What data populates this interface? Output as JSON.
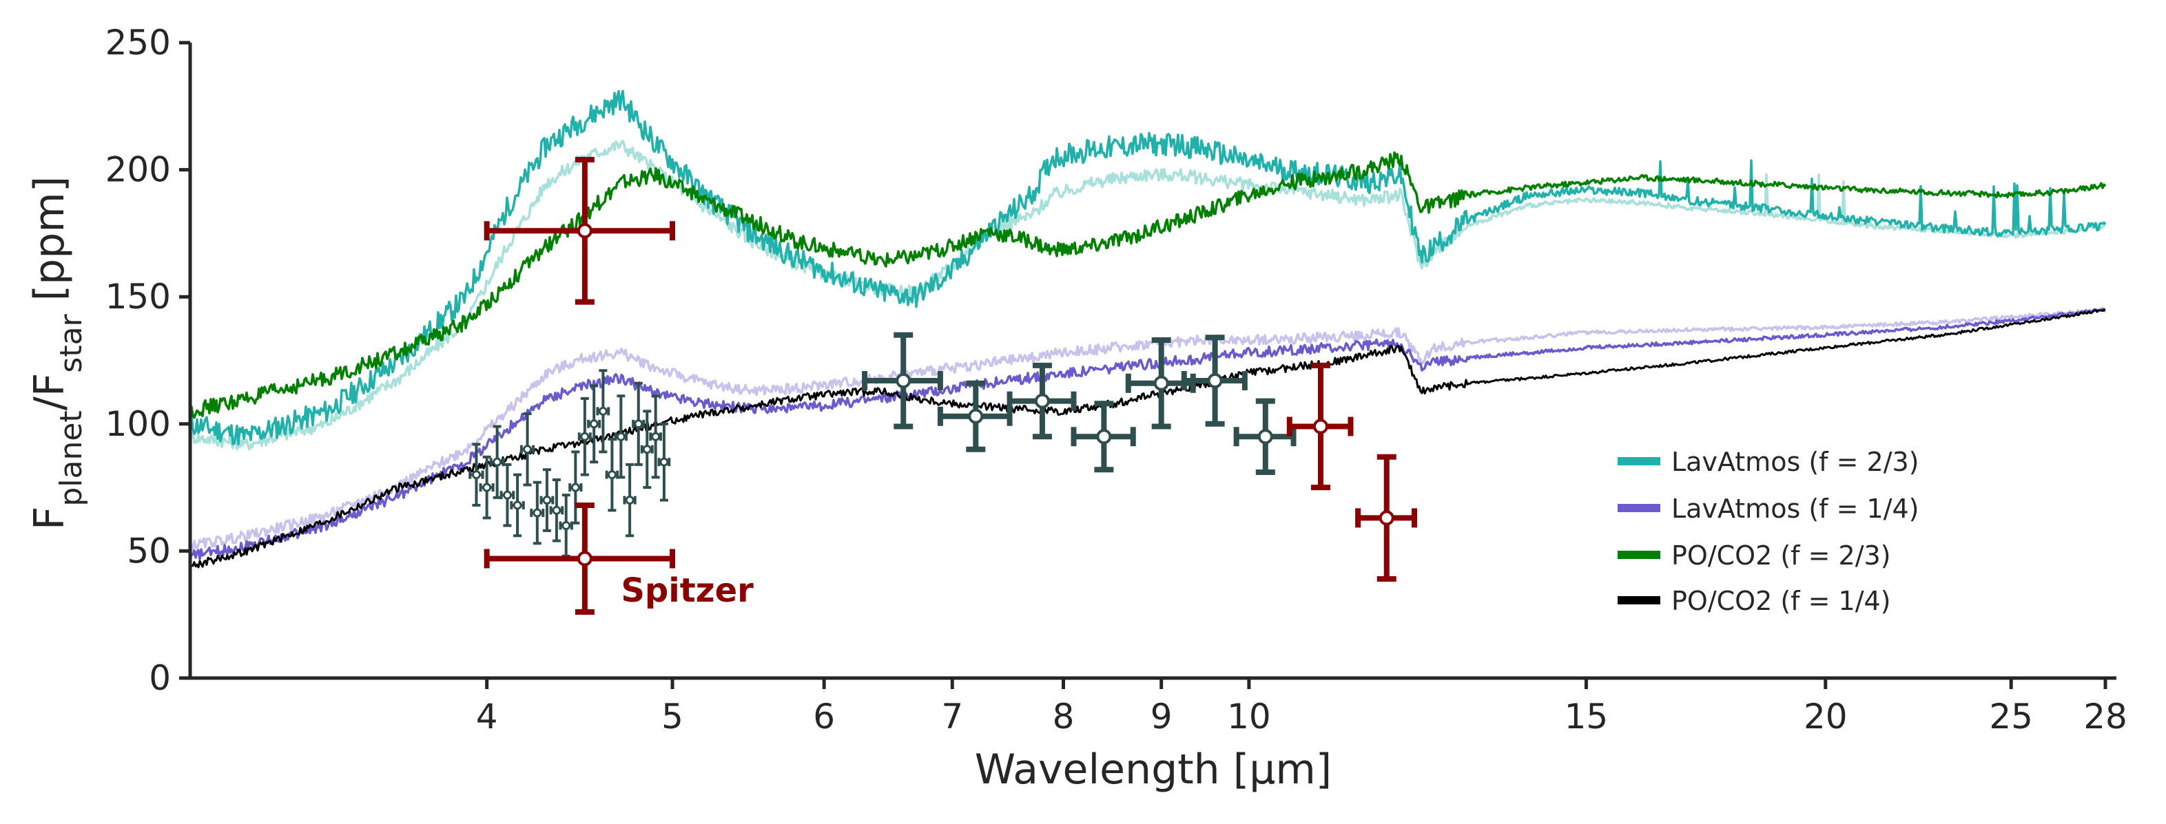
{
  "chart_data": {
    "type": "line",
    "xlabel": "Wavelength [μm]",
    "ylabel": {
      "base": "F",
      "sub1": "planet",
      "sep": "/F",
      "sub2": "star",
      "unit": " [ppm]"
    },
    "xscale": "log",
    "xlim": [
      2.8,
      28
    ],
    "ylim": [
      0,
      250
    ],
    "xticks": [
      4,
      5,
      6,
      7,
      8,
      9,
      10,
      15,
      20,
      25,
      28
    ],
    "yticks": [
      0,
      50,
      100,
      150,
      200,
      250
    ],
    "grid": false,
    "legend": {
      "placement": "center-right"
    },
    "colors": {
      "lav23": "#20b2aa",
      "lav23_light": "#a8e0dc",
      "lav14": "#6a5acd",
      "lav14_light": "#c8c2ec",
      "po23": "#008000",
      "po14": "#000000",
      "jwst": "#2f4f4f",
      "spitzer": "#8b0000"
    },
    "series": [
      {
        "name": "LavAtmos (f = 2/3)",
        "color": "#20b2aa",
        "legend": true,
        "x": [
          2.8,
          3.0,
          3.3,
          3.6,
          3.9,
          4.1,
          4.3,
          4.5,
          4.7,
          4.9,
          5.2,
          5.5,
          5.8,
          6.1,
          6.4,
          6.7,
          7.0,
          7.3,
          7.7,
          7.9,
          8.3,
          8.8,
          9.2,
          9.6,
          10.0,
          10.5,
          11.0,
          11.5,
          12.0,
          12.3,
          12.5,
          13.0,
          14.0,
          15.0,
          16.0,
          17.0,
          19.0,
          21.0,
          23.0,
          25.0,
          27.0,
          28.0
        ],
        "y": [
          100,
          95,
          105,
          125,
          150,
          185,
          210,
          220,
          228,
          210,
          190,
          175,
          165,
          158,
          152,
          150,
          160,
          175,
          190,
          205,
          208,
          210,
          210,
          207,
          203,
          200,
          198,
          195,
          198,
          165,
          170,
          180,
          190,
          192,
          191,
          188,
          184,
          180,
          177,
          175,
          177,
          178
        ],
        "noise": 9
      },
      {
        "name": "LavAtmos (f = 2/3) alt",
        "color": "#a8e0dc",
        "legend": false,
        "x": [
          2.8,
          3.0,
          3.3,
          3.6,
          3.9,
          4.1,
          4.3,
          4.5,
          4.7,
          4.9,
          5.2,
          5.5,
          5.8,
          6.1,
          6.4,
          6.7,
          7.0,
          7.3,
          7.7,
          7.9,
          8.3,
          8.8,
          9.2,
          9.6,
          10.0,
          10.5,
          11.0,
          11.5,
          12.0,
          12.3,
          12.5,
          13.0,
          14.0,
          15.0,
          16.0,
          17.0,
          19.0,
          21.0,
          23.0,
          25.0,
          27.0,
          28.0
        ],
        "y": [
          95,
          92,
          100,
          118,
          140,
          170,
          195,
          205,
          210,
          200,
          185,
          172,
          163,
          157,
          153,
          152,
          162,
          176,
          182,
          190,
          195,
          198,
          198,
          196,
          194,
          192,
          190,
          188,
          190,
          162,
          168,
          178,
          186,
          188,
          187,
          185,
          182,
          178,
          176,
          174,
          176,
          178
        ],
        "noise": 5
      },
      {
        "name": "PO/CO2 (f = 2/3)",
        "color": "#008000",
        "legend": true,
        "x": [
          2.8,
          3.0,
          3.3,
          3.6,
          3.9,
          4.1,
          4.3,
          4.5,
          4.7,
          4.9,
          5.2,
          5.5,
          5.8,
          6.1,
          6.4,
          6.7,
          7.0,
          7.3,
          7.7,
          7.9,
          8.3,
          8.8,
          9.2,
          9.6,
          10.0,
          10.5,
          11.0,
          11.5,
          12.0,
          12.3,
          12.5,
          13.0,
          14.0,
          15.0,
          16.0,
          17.0,
          19.0,
          21.0,
          23.0,
          25.0,
          27.0,
          28.0
        ],
        "y": [
          105,
          110,
          118,
          128,
          140,
          155,
          170,
          182,
          195,
          198,
          188,
          180,
          172,
          168,
          164,
          166,
          170,
          176,
          172,
          168,
          170,
          175,
          180,
          185,
          190,
          195,
          197,
          200,
          205,
          185,
          186,
          190,
          193,
          195,
          197,
          196,
          194,
          192,
          191,
          190,
          192,
          194
        ],
        "noise": 6
      },
      {
        "name": "LavAtmos (f = 1/4)",
        "color": "#6a5acd",
        "legend": true,
        "x": [
          2.8,
          3.0,
          3.3,
          3.6,
          3.9,
          4.1,
          4.3,
          4.5,
          4.7,
          4.9,
          5.2,
          5.5,
          5.8,
          6.1,
          6.4,
          6.7,
          7.0,
          7.5,
          8.0,
          8.5,
          9.0,
          9.5,
          10.0,
          11.0,
          12.0,
          12.3,
          12.5,
          13.0,
          14.0,
          15.0,
          17.0,
          20.0,
          23.0,
          26.0,
          28.0
        ],
        "y": [
          48,
          52,
          60,
          72,
          85,
          98,
          110,
          115,
          118,
          112,
          108,
          106,
          106,
          108,
          110,
          112,
          114,
          117,
          120,
          122,
          124,
          126,
          128,
          130,
          132,
          122,
          124,
          126,
          128,
          130,
          132,
          135,
          138,
          142,
          145
        ],
        "noise": 4
      },
      {
        "name": "LavAtmos (f = 1/4) alt",
        "color": "#c8c2ec",
        "legend": false,
        "x": [
          2.8,
          3.0,
          3.3,
          3.6,
          3.9,
          4.1,
          4.3,
          4.5,
          4.7,
          4.9,
          5.2,
          5.5,
          5.8,
          6.1,
          6.4,
          6.7,
          7.0,
          7.5,
          8.0,
          8.5,
          9.0,
          9.5,
          10.0,
          11.0,
          12.0,
          12.3,
          12.5,
          13.0,
          14.0,
          15.0,
          17.0,
          20.0,
          23.0,
          26.0,
          28.0
        ],
        "y": [
          52,
          56,
          64,
          76,
          90,
          105,
          120,
          126,
          128,
          122,
          116,
          113,
          114,
          116,
          118,
          120,
          122,
          125,
          128,
          130,
          132,
          133,
          133,
          134,
          136,
          125,
          130,
          132,
          134,
          136,
          137,
          138,
          140,
          143,
          145
        ],
        "noise": 4
      },
      {
        "name": "PO/CO2 (f = 1/4)",
        "color": "#000000",
        "legend": true,
        "x": [
          2.8,
          3.0,
          3.3,
          3.6,
          3.9,
          4.1,
          4.3,
          4.5,
          4.7,
          4.9,
          5.2,
          5.5,
          5.8,
          6.1,
          6.4,
          6.7,
          7.0,
          7.5,
          8.0,
          8.5,
          9.0,
          9.5,
          10.0,
          11.0,
          12.0,
          12.3,
          12.5,
          13.0,
          14.0,
          15.0,
          17.0,
          20.0,
          23.0,
          26.0,
          28.0
        ],
        "y": [
          44,
          50,
          62,
          75,
          82,
          86,
          90,
          93,
          96,
          100,
          104,
          107,
          110,
          112,
          113,
          110,
          108,
          106,
          105,
          108,
          112,
          116,
          120,
          124,
          130,
          113,
          114,
          116,
          118,
          120,
          124,
          130,
          135,
          141,
          145
        ],
        "noise": 3
      }
    ],
    "jwst_points": [
      {
        "x": 3.95,
        "y": 80,
        "yerr": 12,
        "xerr": 0.03
      },
      {
        "x": 4.0,
        "y": 75,
        "yerr": 12,
        "xerr": 0.03
      },
      {
        "x": 4.05,
        "y": 85,
        "yerr": 14,
        "xerr": 0.03
      },
      {
        "x": 4.1,
        "y": 72,
        "yerr": 12,
        "xerr": 0.03
      },
      {
        "x": 4.15,
        "y": 68,
        "yerr": 12,
        "xerr": 0.03
      },
      {
        "x": 4.2,
        "y": 90,
        "yerr": 14,
        "xerr": 0.03
      },
      {
        "x": 4.25,
        "y": 65,
        "yerr": 12,
        "xerr": 0.03
      },
      {
        "x": 4.3,
        "y": 70,
        "yerr": 12,
        "xerr": 0.03
      },
      {
        "x": 4.35,
        "y": 66,
        "yerr": 12,
        "xerr": 0.03
      },
      {
        "x": 4.4,
        "y": 60,
        "yerr": 12,
        "xerr": 0.03
      },
      {
        "x": 4.45,
        "y": 75,
        "yerr": 14,
        "xerr": 0.03
      },
      {
        "x": 4.5,
        "y": 95,
        "yerr": 15,
        "xerr": 0.03
      },
      {
        "x": 4.55,
        "y": 100,
        "yerr": 15,
        "xerr": 0.03
      },
      {
        "x": 4.6,
        "y": 105,
        "yerr": 16,
        "xerr": 0.03
      },
      {
        "x": 4.65,
        "y": 80,
        "yerr": 14,
        "xerr": 0.03
      },
      {
        "x": 4.7,
        "y": 95,
        "yerr": 16,
        "xerr": 0.03
      },
      {
        "x": 4.75,
        "y": 70,
        "yerr": 14,
        "xerr": 0.03
      },
      {
        "x": 4.8,
        "y": 100,
        "yerr": 16,
        "xerr": 0.03
      },
      {
        "x": 4.85,
        "y": 90,
        "yerr": 15,
        "xerr": 0.03
      },
      {
        "x": 4.9,
        "y": 95,
        "yerr": 16,
        "xerr": 0.03
      },
      {
        "x": 4.95,
        "y": 85,
        "yerr": 15,
        "xerr": 0.03
      },
      {
        "x": 6.6,
        "y": 117,
        "yerr": 18,
        "xerr": 0.3
      },
      {
        "x": 7.2,
        "y": 103,
        "yerr": 13,
        "xerr": 0.3
      },
      {
        "x": 7.8,
        "y": 109,
        "yerr": 14,
        "xerr": 0.3
      },
      {
        "x": 8.4,
        "y": 95,
        "yerr": 13,
        "xerr": 0.3
      },
      {
        "x": 9.0,
        "y": 116,
        "yerr": 17,
        "xerr": 0.35
      },
      {
        "x": 9.6,
        "y": 117,
        "yerr": 17,
        "xerr": 0.35
      },
      {
        "x": 10.2,
        "y": 95,
        "yerr": 14,
        "xerr": 0.35
      }
    ],
    "spitzer_points": [
      {
        "x": 4.5,
        "y": 176,
        "yerr": 28,
        "xlo": 4.0,
        "xhi": 5.0
      },
      {
        "x": 4.5,
        "y": 47,
        "yerr": 21,
        "xlo": 4.0,
        "xhi": 5.0
      },
      {
        "x": 10.9,
        "y": 99,
        "yerr": 24,
        "xerr": 0.4
      },
      {
        "x": 11.8,
        "y": 63,
        "yerr": 24,
        "xerr": 0.4
      }
    ],
    "annotations": [
      {
        "text": "Spitzer",
        "x": 4.7,
        "y": 30,
        "color": "#8b0000"
      }
    ]
  }
}
